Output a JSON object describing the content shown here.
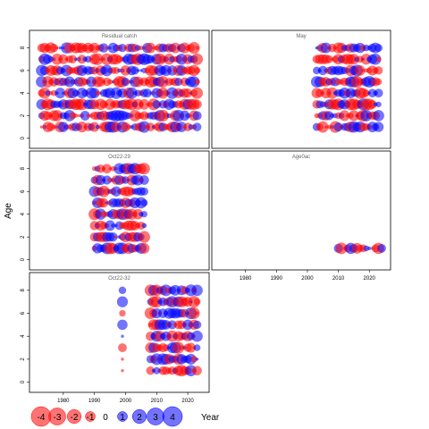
{
  "figure": {
    "ylabel": "Age",
    "xlabel": "Year",
    "legend_values": [
      "-4",
      "-3",
      "-2",
      "-1",
      "0",
      "1",
      "2",
      "3",
      "4"
    ],
    "colors": {
      "negative": "#ff0000",
      "positive": "#0000ff",
      "bubble_opacity": 0.55
    }
  },
  "chart_data": [
    {
      "type": "scatter",
      "title": "Residual catch",
      "xlim": [
        1970,
        2026
      ],
      "ylim": [
        -0.5,
        9
      ],
      "yticks": [
        "0",
        "2",
        "4",
        "6",
        "8"
      ],
      "xticks": [],
      "ages": [
        1,
        2,
        3,
        4,
        5,
        6,
        7,
        8
      ],
      "x_range": [
        1973,
        2023
      ],
      "max_abs_residual": 2.5,
      "grid": false
    },
    {
      "type": "scatter",
      "title": "May",
      "xlim": [
        1970,
        2026
      ],
      "ylim": [
        -0.5,
        9
      ],
      "yticks": [],
      "xticks": [],
      "ages": [
        1,
        2,
        3,
        4,
        5,
        6,
        7,
        8
      ],
      "x_range": [
        2003,
        2023
      ],
      "max_abs_residual": 2.5,
      "grid": false
    },
    {
      "type": "scatter",
      "title": "Oct22-29",
      "xlim": [
        1970,
        2026
      ],
      "ylim": [
        -0.5,
        9
      ],
      "yticks": [
        "0",
        "2",
        "4",
        "6",
        "8"
      ],
      "xticks": [],
      "ages": [
        1,
        2,
        3,
        4,
        5,
        6,
        7,
        8
      ],
      "x_range": [
        1990,
        2006
      ],
      "max_abs_residual": 2.5,
      "grid": false
    },
    {
      "type": "scatter",
      "title": "Age0ac",
      "xlim": [
        1970,
        2026
      ],
      "ylim": [
        -0.5,
        9
      ],
      "yticks": [],
      "xticks": [
        "1980",
        "1990",
        "2000",
        "2010",
        "2020"
      ],
      "ages": [
        1
      ],
      "x_range": [
        2010,
        2024
      ],
      "max_abs_residual": 2.5,
      "grid": false
    },
    {
      "type": "scatter",
      "title": "Oct22-32",
      "xlim": [
        1970,
        2026
      ],
      "ylim": [
        -0.5,
        9
      ],
      "yticks": [
        "0",
        "2",
        "4",
        "6",
        "8"
      ],
      "xticks": [
        "1980",
        "1990",
        "2000",
        "2010",
        "2020"
      ],
      "ages": [
        1,
        2,
        3,
        4,
        5,
        6,
        7,
        8
      ],
      "x_range": [
        1999,
        2023
      ],
      "gap_years": [
        2000,
        2001,
        2002,
        2003,
        2004,
        2005,
        2006,
        2007
      ],
      "max_abs_residual": 2.5,
      "grid": false
    }
  ]
}
